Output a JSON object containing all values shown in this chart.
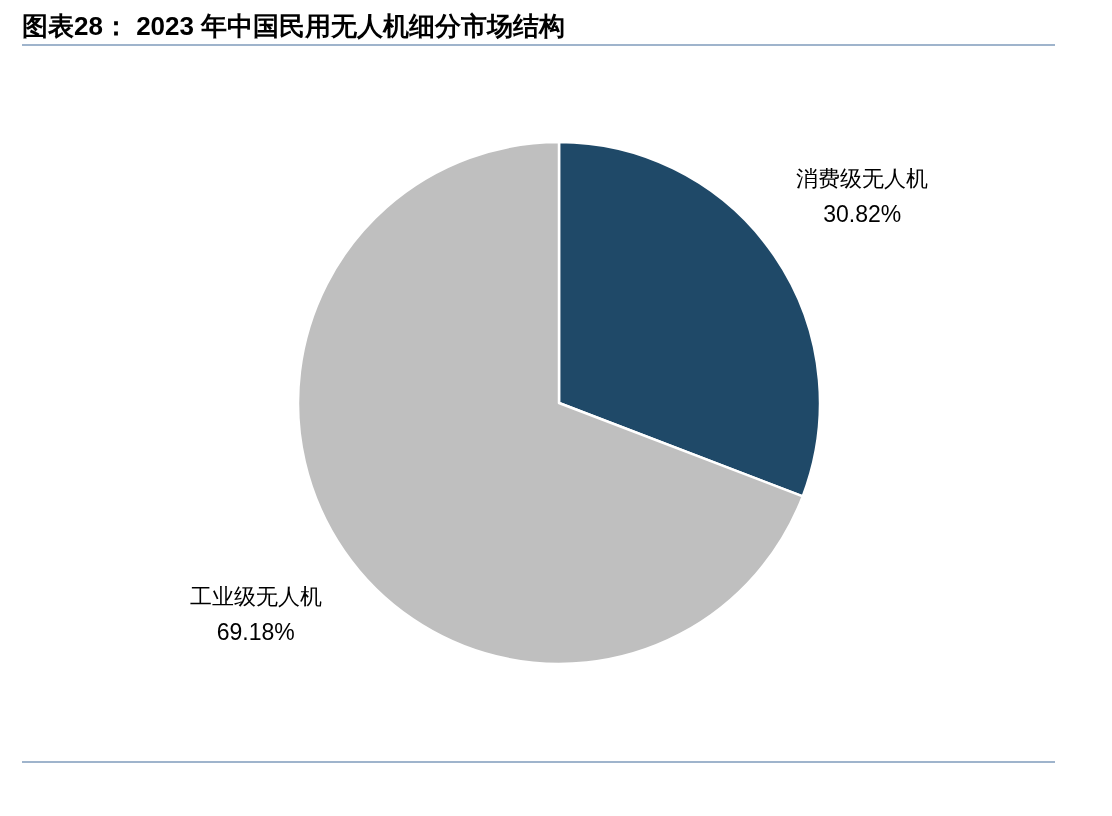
{
  "chart_data": {
    "type": "pie",
    "title": "图表28： 2023 年中国民用无人机细分市场结构",
    "categories": [
      "消费级无人机",
      "工业级无人机"
    ],
    "values": [
      30.82,
      69.18
    ],
    "colors": [
      "#1f4968",
      "#bfbfbf"
    ],
    "value_labels": [
      "30.82%",
      "69.18%"
    ]
  }
}
